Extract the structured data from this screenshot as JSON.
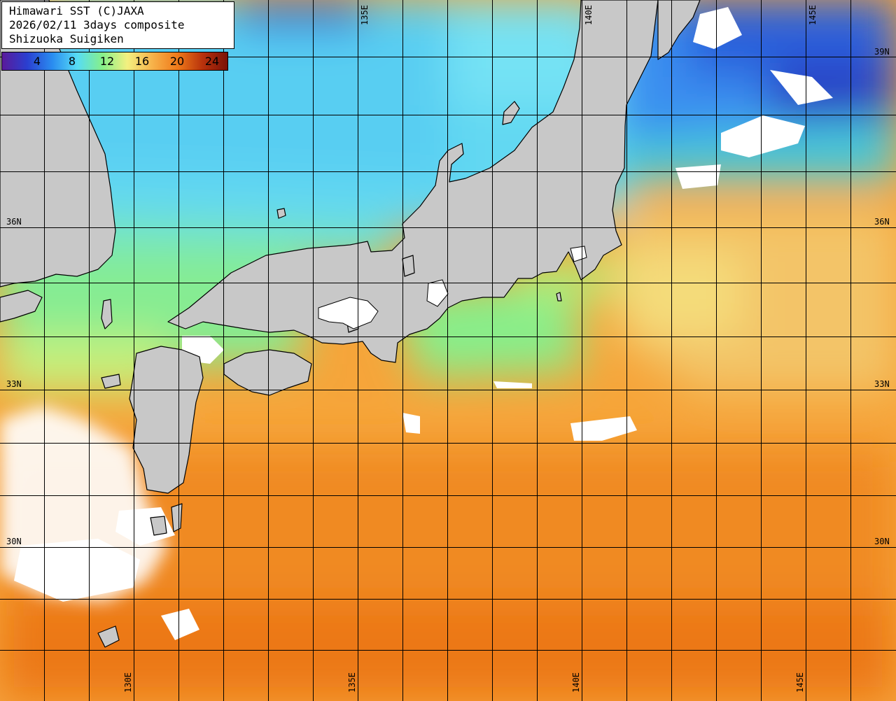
{
  "header": {
    "line1": "Himawari SST (C)JAXA",
    "line2": "2026/02/11 3days composite",
    "line3": "Shizuoka Suigiken"
  },
  "legend": {
    "labels": [
      "4",
      "8",
      "12",
      "16",
      "20",
      "24"
    ],
    "colors": [
      "#5a1a9a",
      "#2a3fd0",
      "#2a8cf0",
      "#56dcf5",
      "#86f08a",
      "#f3f080",
      "#f7b24a",
      "#ef7a1a",
      "#b8320c",
      "#7a1208"
    ]
  },
  "grid": {
    "lat_labels_left": [
      "36N",
      "33N",
      "30N"
    ],
    "lat_labels_right": [
      "36N",
      "33N",
      "30N",
      "39N"
    ],
    "lon_labels_top": [
      "135E",
      "140E",
      "145E"
    ],
    "lon_labels_bottom": [
      "130E",
      "135E",
      "140E",
      "145E"
    ]
  },
  "colors": {
    "land": "#c8c8c8",
    "cloud": "#ffffff",
    "grid_line": "#000000",
    "sea_warm": "#f6a53a",
    "sea_cold": "#62d8f2"
  }
}
